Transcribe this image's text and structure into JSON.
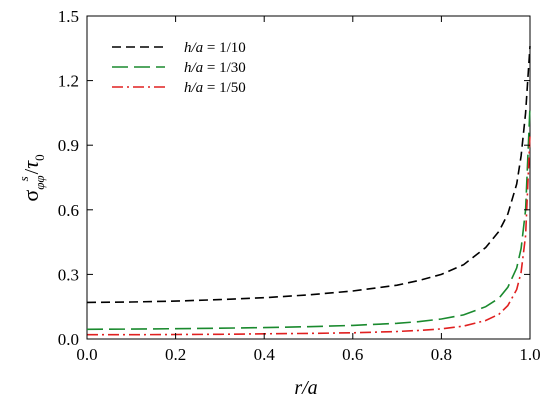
{
  "chart_data": {
    "type": "line",
    "xlabel": "r/a",
    "ylabel": {
      "base": "σ",
      "sub": "φφ",
      "sup": "s",
      "slash": "/",
      "denominator": "τ",
      "denominator_sub": "0"
    },
    "xlim": [
      0.0,
      1.0
    ],
    "ylim": [
      0.0,
      1.5
    ],
    "x_ticks": [
      "0.0",
      "0.2",
      "0.4",
      "0.6",
      "0.8",
      "1.0"
    ],
    "y_ticks": [
      "0.0",
      "0.3",
      "0.6",
      "0.9",
      "1.2",
      "1.5"
    ],
    "grid": false,
    "legend_position": "top-left",
    "series": [
      {
        "name": "h/a = 1/10",
        "color": "#000000",
        "dash": "dashed",
        "x": [
          0,
          0.1,
          0.2,
          0.3,
          0.4,
          0.5,
          0.6,
          0.7,
          0.75,
          0.8,
          0.85,
          0.9,
          0.93,
          0.95,
          0.97,
          0.98,
          0.99,
          1.0
        ],
        "y": [
          0.17,
          0.172,
          0.176,
          0.183,
          0.192,
          0.205,
          0.223,
          0.25,
          0.272,
          0.3,
          0.345,
          0.425,
          0.5,
          0.58,
          0.72,
          0.85,
          1.05,
          1.36
        ]
      },
      {
        "name": "h/a = 1/30",
        "color": "#1a8a2e",
        "dash": "long-dashed",
        "x": [
          0,
          0.1,
          0.2,
          0.3,
          0.4,
          0.5,
          0.6,
          0.7,
          0.75,
          0.8,
          0.85,
          0.9,
          0.93,
          0.95,
          0.97,
          0.98,
          0.99,
          1.0
        ],
        "y": [
          0.045,
          0.046,
          0.048,
          0.05,
          0.053,
          0.057,
          0.063,
          0.073,
          0.081,
          0.093,
          0.112,
          0.15,
          0.19,
          0.24,
          0.33,
          0.42,
          0.6,
          1.08
        ]
      },
      {
        "name": "h/a = 1/50",
        "color": "#e02020",
        "dash": "dash-dot",
        "x": [
          0,
          0.1,
          0.2,
          0.3,
          0.4,
          0.5,
          0.6,
          0.7,
          0.75,
          0.8,
          0.85,
          0.9,
          0.93,
          0.95,
          0.97,
          0.98,
          0.99,
          1.0
        ],
        "y": [
          0.02,
          0.02,
          0.021,
          0.022,
          0.024,
          0.026,
          0.029,
          0.035,
          0.04,
          0.047,
          0.06,
          0.086,
          0.115,
          0.155,
          0.23,
          0.31,
          0.48,
          0.95
        ]
      }
    ]
  }
}
